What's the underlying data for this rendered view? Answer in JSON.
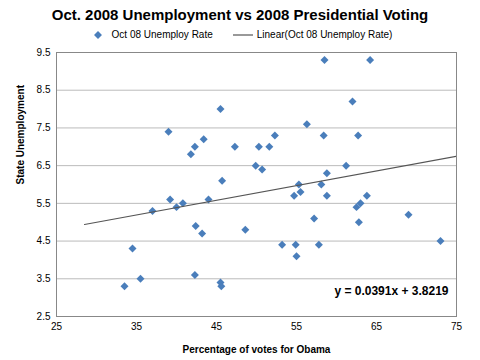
{
  "chart_data": {
    "type": "scatter",
    "title": "Oct. 2008 Unemployment vs 2008 Presidential Voting",
    "x_label": "Percentage of votes for Obama",
    "y_label": "State Unemployment",
    "xlim": [
      25,
      75
    ],
    "xticks": [
      25,
      35,
      45,
      55,
      65,
      75
    ],
    "ylim": [
      2.5,
      9.5
    ],
    "yticks": [
      2.5,
      3.5,
      4.5,
      5.5,
      6.5,
      7.5,
      8.5,
      9.5
    ],
    "grid": true,
    "legend": "top",
    "annotations": [
      "y = 0.0391x + 3.8219"
    ],
    "series": [
      {
        "name": "Oct 08 Unemploy Rate",
        "type": "scatter",
        "marker": "diamond",
        "color": "#4a7ebb",
        "x": [
          33.5,
          34.5,
          35.5,
          37,
          39,
          39.2,
          40,
          40.8,
          41.8,
          42.3,
          42.4,
          42.3,
          43.2,
          43.4,
          44,
          45.5,
          45.7,
          45.5,
          45.6,
          47.3,
          48.6,
          49.9,
          50.3,
          50.7,
          51.6,
          52.3,
          53.2,
          54.7,
          54.9,
          55,
          55.3,
          55.5,
          56.3,
          57.2,
          57.8,
          58.1,
          58.5,
          58.4,
          58.8,
          58.8,
          61.2,
          62,
          62.5,
          62.7,
          62.8,
          63,
          63.8,
          64.2,
          69,
          73
        ],
        "values": [
          3.3,
          4.3,
          3.5,
          5.3,
          7.4,
          5.6,
          5.4,
          5.5,
          6.8,
          7.0,
          4.9,
          3.6,
          4.7,
          7.2,
          5.6,
          8.0,
          6.1,
          3.4,
          3.3,
          7.0,
          4.8,
          6.5,
          7.0,
          6.4,
          7.0,
          7.3,
          4.4,
          5.7,
          4.4,
          4.1,
          6.0,
          5.8,
          7.6,
          5.1,
          4.4,
          6.0,
          9.3,
          7.3,
          6.3,
          5.7,
          6.5,
          8.2,
          5.4,
          7.3,
          5.0,
          5.5,
          5.7,
          9.3,
          5.2,
          4.5
        ]
      },
      {
        "name": "Linear(Oct 08 Unemploy Rate)",
        "type": "line",
        "line_style": "solid",
        "color": "#555555",
        "x": [
          28.5,
          75
        ],
        "values": [
          4.94,
          6.75
        ]
      }
    ]
  }
}
